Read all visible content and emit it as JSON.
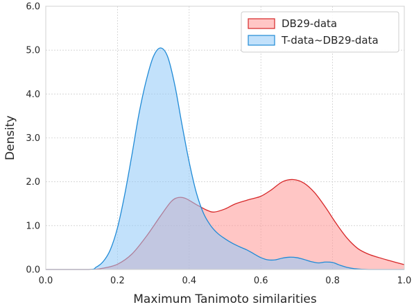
{
  "chart_data": {
    "type": "area",
    "xlabel": "Maximum Tanimoto similarities",
    "ylabel": "Density",
    "xlim": [
      0.0,
      1.0
    ],
    "ylim": [
      0.0,
      6.0
    ],
    "x_ticks": [
      0.0,
      0.2,
      0.4,
      0.6,
      0.8,
      1.0
    ],
    "x_tick_labels": [
      "0.0",
      "0.2",
      "0.4",
      "0.6",
      "0.8",
      "1.0"
    ],
    "y_ticks": [
      0.0,
      1.0,
      2.0,
      3.0,
      4.0,
      5.0,
      6.0
    ],
    "y_tick_labels": [
      "0.0",
      "1.0",
      "2.0",
      "3.0",
      "4.0",
      "5.0",
      "6.0"
    ],
    "grid": true,
    "legend_position": "top-right",
    "series": [
      {
        "name": "DB29-data",
        "line_color": "#d62728",
        "fill_color": "#ff9896",
        "points": [
          [
            0.0,
            0.0
          ],
          [
            0.12,
            0.0
          ],
          [
            0.16,
            0.03
          ],
          [
            0.2,
            0.12
          ],
          [
            0.24,
            0.35
          ],
          [
            0.28,
            0.75
          ],
          [
            0.32,
            1.22
          ],
          [
            0.35,
            1.55
          ],
          [
            0.37,
            1.64
          ],
          [
            0.39,
            1.62
          ],
          [
            0.42,
            1.48
          ],
          [
            0.45,
            1.35
          ],
          [
            0.47,
            1.31
          ],
          [
            0.5,
            1.38
          ],
          [
            0.53,
            1.5
          ],
          [
            0.57,
            1.6
          ],
          [
            0.6,
            1.67
          ],
          [
            0.63,
            1.82
          ],
          [
            0.66,
            2.0
          ],
          [
            0.69,
            2.05
          ],
          [
            0.72,
            1.97
          ],
          [
            0.75,
            1.75
          ],
          [
            0.78,
            1.42
          ],
          [
            0.81,
            1.05
          ],
          [
            0.84,
            0.72
          ],
          [
            0.87,
            0.48
          ],
          [
            0.9,
            0.35
          ],
          [
            0.93,
            0.27
          ],
          [
            0.96,
            0.2
          ],
          [
            1.0,
            0.11
          ]
        ]
      },
      {
        "name": "T-data~DB29-data",
        "line_color": "#1f8ad6",
        "fill_color": "#8fc8f7",
        "points": [
          [
            0.0,
            0.0
          ],
          [
            0.12,
            0.0
          ],
          [
            0.14,
            0.05
          ],
          [
            0.16,
            0.18
          ],
          [
            0.18,
            0.45
          ],
          [
            0.2,
            0.95
          ],
          [
            0.22,
            1.7
          ],
          [
            0.24,
            2.6
          ],
          [
            0.26,
            3.55
          ],
          [
            0.28,
            4.3
          ],
          [
            0.3,
            4.85
          ],
          [
            0.32,
            5.05
          ],
          [
            0.34,
            4.85
          ],
          [
            0.36,
            4.2
          ],
          [
            0.38,
            3.3
          ],
          [
            0.4,
            2.45
          ],
          [
            0.42,
            1.75
          ],
          [
            0.44,
            1.28
          ],
          [
            0.46,
            1.0
          ],
          [
            0.48,
            0.82
          ],
          [
            0.5,
            0.7
          ],
          [
            0.52,
            0.6
          ],
          [
            0.54,
            0.52
          ],
          [
            0.56,
            0.45
          ],
          [
            0.58,
            0.36
          ],
          [
            0.6,
            0.27
          ],
          [
            0.62,
            0.22
          ],
          [
            0.64,
            0.22
          ],
          [
            0.66,
            0.26
          ],
          [
            0.68,
            0.28
          ],
          [
            0.7,
            0.27
          ],
          [
            0.72,
            0.23
          ],
          [
            0.74,
            0.18
          ],
          [
            0.76,
            0.15
          ],
          [
            0.78,
            0.17
          ],
          [
            0.8,
            0.16
          ],
          [
            0.82,
            0.1
          ],
          [
            0.84,
            0.05
          ],
          [
            0.86,
            0.02
          ],
          [
            0.9,
            0.0
          ],
          [
            1.0,
            0.0
          ]
        ]
      }
    ]
  }
}
